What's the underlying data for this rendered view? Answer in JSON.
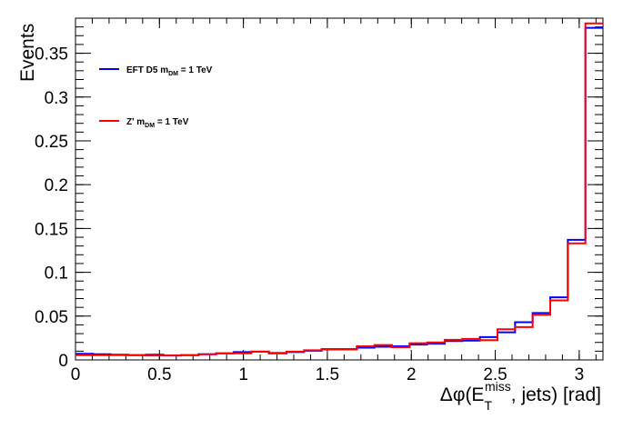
{
  "chart_data": {
    "type": "histogram",
    "xlabel_prefix": "Δφ(E",
    "xlabel_sub": "T",
    "xlabel_sup": "miss",
    "xlabel_suffix": ", jets) [rad]",
    "ylabel": "Events",
    "xlim": [
      0,
      3.1416
    ],
    "ylim": [
      0,
      0.39
    ],
    "bin_edges": [
      0,
      0.1047,
      0.2094,
      0.3142,
      0.4189,
      0.5236,
      0.6283,
      0.733,
      0.8378,
      0.9425,
      1.0472,
      1.1519,
      1.2566,
      1.3614,
      1.4661,
      1.5708,
      1.6755,
      1.7802,
      1.885,
      1.9897,
      2.0944,
      2.1991,
      2.3038,
      2.4086,
      2.5133,
      2.618,
      2.7227,
      2.8274,
      2.9322,
      3.0369,
      3.1416
    ],
    "xticks": [
      0,
      0.5,
      1,
      1.5,
      2,
      2.5,
      3
    ],
    "xtick_labels": [
      "0",
      "0.5",
      "1",
      "1.5",
      "2",
      "2.5",
      "3"
    ],
    "yticks": [
      0,
      0.05,
      0.1,
      0.15,
      0.2,
      0.25,
      0.3,
      0.35
    ],
    "ytick_labels": [
      "0",
      "0.05",
      "0.1",
      "0.15",
      "0.2",
      "0.25",
      "0.3",
      "0.35"
    ],
    "series": [
      {
        "name_main": "EFT D5 m",
        "name_sub": "DM",
        "name_tail": " = 1 TeV",
        "color": "#0000ff",
        "values": [
          0.007,
          0.0065,
          0.006,
          0.0055,
          0.006,
          0.005,
          0.0055,
          0.0065,
          0.0075,
          0.009,
          0.0095,
          0.0075,
          0.009,
          0.0105,
          0.012,
          0.012,
          0.014,
          0.015,
          0.0155,
          0.0175,
          0.0185,
          0.0215,
          0.022,
          0.026,
          0.0315,
          0.043,
          0.0535,
          0.0715,
          0.137,
          0.379
        ]
      },
      {
        "name_main": "Z' m",
        "name_sub": "DM",
        "name_tail": " = 1 TeV",
        "color": "#ff0000",
        "values": [
          0.0055,
          0.0055,
          0.0055,
          0.0055,
          0.005,
          0.005,
          0.0055,
          0.0065,
          0.0075,
          0.0075,
          0.0095,
          0.008,
          0.0095,
          0.011,
          0.0125,
          0.0125,
          0.0155,
          0.017,
          0.0145,
          0.019,
          0.02,
          0.023,
          0.024,
          0.0225,
          0.035,
          0.0375,
          0.0515,
          0.068,
          0.133,
          0.384
        ]
      }
    ],
    "legend_position": "top-left",
    "grid": false
  }
}
